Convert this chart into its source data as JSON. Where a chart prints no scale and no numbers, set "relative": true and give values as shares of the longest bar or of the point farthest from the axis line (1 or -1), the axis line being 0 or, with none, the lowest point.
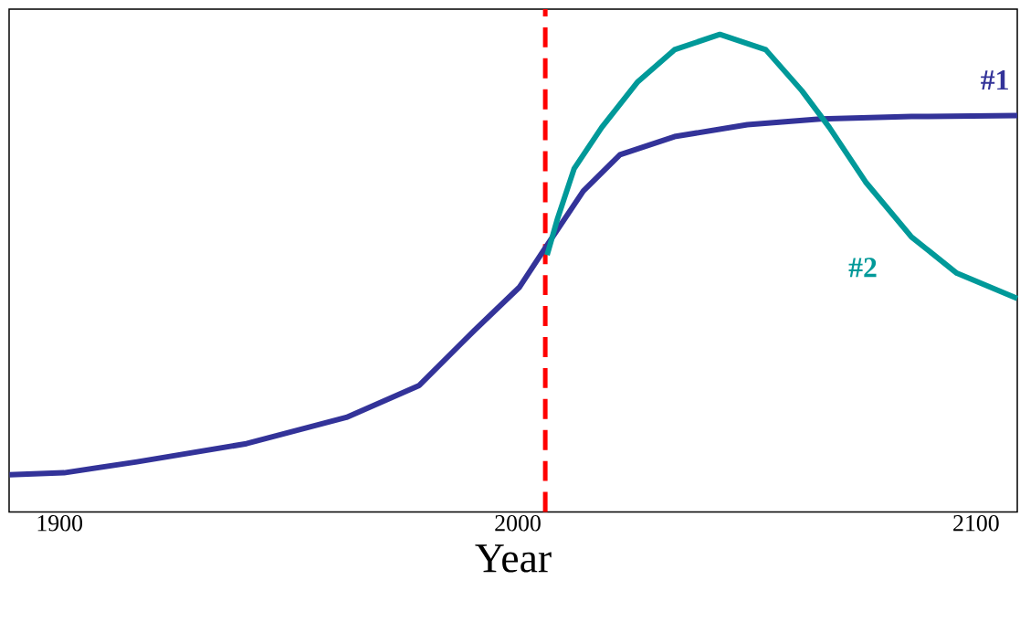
{
  "chart_data": {
    "type": "line",
    "xlabel": "Year",
    "relative": true,
    "xlim": [
      1889,
      2109
    ],
    "xticks": [
      1900,
      2000,
      2100
    ],
    "legend": false,
    "grid": false,
    "marker": "none",
    "line_style": "solid",
    "ref_lines": [
      {
        "axis": "x",
        "value": 2006,
        "color": "#ff0000",
        "line_style": "dashed"
      }
    ],
    "series": [
      {
        "name": "#1",
        "color": "#333399",
        "x": [
          1889.1,
          1901,
          1916.9,
          1940.8,
          1962.6,
          1978.5,
          1990.5,
          2000.4,
          2006,
          2014.3,
          2022.3,
          2034.2,
          2050.1,
          2066,
          2085.9,
          2109
        ],
        "values": [
          0.078,
          0.082,
          0.105,
          0.143,
          0.198,
          0.265,
          0.38,
          0.471,
          0.553,
          0.672,
          0.748,
          0.786,
          0.811,
          0.823,
          0.828,
          0.83
        ]
      },
      {
        "name": "#2",
        "color": "#009999",
        "x": [
          2006.4,
          2008.7,
          2012.3,
          2018.3,
          2026.2,
          2034.2,
          2044.1,
          2054.1,
          2062,
          2068,
          2075.9,
          2085.9,
          2095.8,
          2109
        ],
        "values": [
          0.538,
          0.615,
          0.719,
          0.805,
          0.901,
          0.968,
          1,
          0.968,
          0.882,
          0.805,
          0.691,
          0.576,
          0.5,
          0.447
        ]
      }
    ]
  }
}
